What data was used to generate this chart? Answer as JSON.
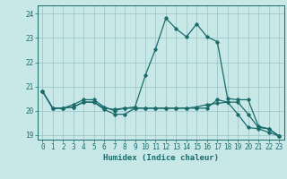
{
  "xlabel": "Humidex (Indice chaleur)",
  "background_color": "#c8e8e8",
  "grid_color": "#a0c8c8",
  "line_color": "#1a6b6b",
  "xlim": [
    -0.5,
    23.5
  ],
  "ylim": [
    18.8,
    24.35
  ],
  "yticks": [
    19,
    20,
    21,
    22,
    23,
    24
  ],
  "xticks": [
    0,
    1,
    2,
    3,
    4,
    5,
    6,
    7,
    8,
    9,
    10,
    11,
    12,
    13,
    14,
    15,
    16,
    17,
    18,
    19,
    20,
    21,
    22,
    23
  ],
  "series": [
    [
      20.8,
      20.1,
      20.1,
      20.15,
      20.35,
      20.35,
      20.05,
      19.85,
      19.85,
      20.1,
      20.1,
      20.1,
      20.1,
      20.1,
      20.1,
      20.15,
      20.25,
      20.3,
      20.35,
      19.85,
      19.3,
      19.25,
      19.1,
      18.95
    ],
    [
      20.8,
      20.1,
      20.1,
      20.15,
      20.35,
      20.35,
      20.1,
      20.05,
      20.1,
      20.15,
      21.45,
      22.55,
      23.82,
      23.38,
      23.05,
      23.58,
      23.05,
      22.85,
      20.5,
      20.45,
      20.45,
      19.35,
      19.25,
      18.95
    ],
    [
      20.8,
      20.1,
      20.1,
      20.25,
      20.45,
      20.45,
      20.15,
      20.0,
      20.1,
      20.1,
      20.1,
      20.1,
      20.1,
      20.1,
      20.1,
      20.1,
      20.1,
      20.45,
      20.35,
      20.35,
      19.85,
      19.3,
      19.25,
      18.95
    ]
  ],
  "tick_fontsize": 5.5,
  "xlabel_fontsize": 6.5
}
